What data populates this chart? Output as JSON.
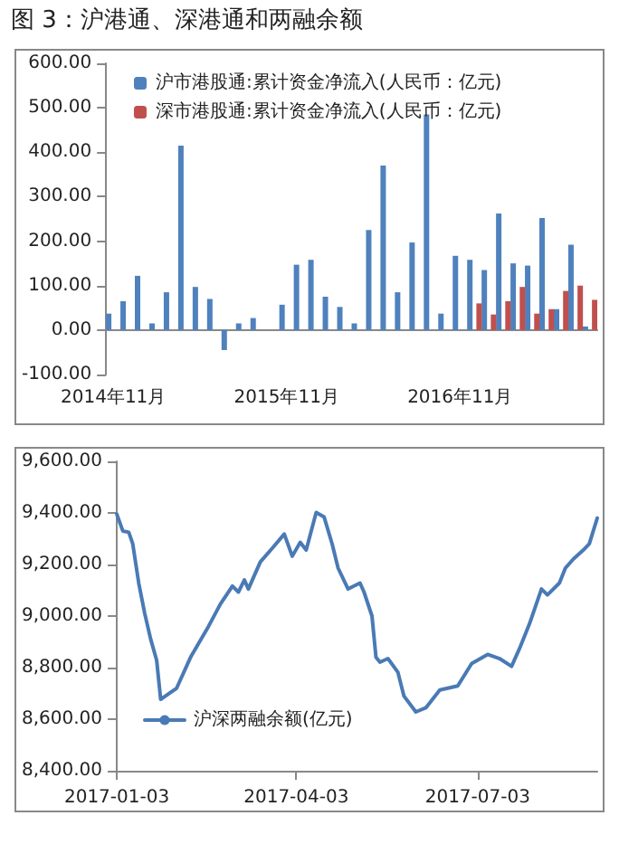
{
  "chart_data": [
    {
      "type": "bar",
      "title": "图 3：沪港通、深港通和两融余额",
      "categories": [
        "2014年11月",
        null,
        null,
        null,
        null,
        null,
        null,
        null,
        null,
        null,
        null,
        null,
        "2015年11月",
        null,
        null,
        null,
        null,
        null,
        null,
        null,
        null,
        null,
        null,
        null,
        "2016年11月",
        null,
        null,
        null,
        null,
        null,
        null,
        null,
        null,
        null
      ],
      "series": [
        {
          "name": "沪市港股通:累计资金净流入(人民币：亿元)",
          "color": "#4f81bd",
          "values": [
            37,
            65,
            122,
            15,
            85,
            415,
            97,
            70,
            -45,
            15,
            27,
            0,
            57,
            147,
            158,
            75,
            52,
            15,
            225,
            370,
            85,
            197,
            485,
            37,
            167,
            158,
            135,
            262,
            150,
            145,
            252,
            47,
            192,
            8
          ]
        },
        {
          "name": "深市港股通:累计资金净流入(人民币：亿元)",
          "color": "#c0504d",
          "values": [
            null,
            null,
            null,
            null,
            null,
            null,
            null,
            null,
            null,
            null,
            null,
            null,
            null,
            null,
            null,
            null,
            null,
            null,
            null,
            null,
            null,
            null,
            null,
            null,
            null,
            60,
            35,
            65,
            97,
            37,
            47,
            88,
            100,
            68
          ]
        }
      ],
      "ylim": [
        -100,
        600
      ],
      "yticks": [
        {
          "value": -100,
          "label": "-100.00"
        },
        {
          "value": 0,
          "label": "0.00"
        },
        {
          "value": 100,
          "label": "100.00"
        },
        {
          "value": 200,
          "label": "200.00"
        },
        {
          "value": 300,
          "label": "300.00"
        },
        {
          "value": 400,
          "label": "400.00"
        },
        {
          "value": 500,
          "label": "500.00"
        },
        {
          "value": 600,
          "label": "600.00"
        }
      ],
      "legend": "top left"
    },
    {
      "type": "line",
      "x": [
        "2017-01-03",
        "2017-01-06",
        "2017-01-09",
        "2017-01-11",
        "2017-01-14",
        "2017-01-17",
        "2017-01-20",
        "2017-01-23",
        "2017-01-25",
        "2017-02-02",
        "2017-02-09",
        "2017-02-18",
        "2017-02-24",
        "2017-03-02",
        "2017-03-05",
        "2017-03-08",
        "2017-03-10",
        "2017-03-16",
        "2017-03-22",
        "2017-03-28",
        "2017-04-01",
        "2017-04-05",
        "2017-04-08",
        "2017-04-13",
        "2017-04-17",
        "2017-04-21",
        "2017-04-24",
        "2017-04-29",
        "2017-05-05",
        "2017-05-07",
        "2017-05-11",
        "2017-05-13",
        "2017-05-15",
        "2017-05-19",
        "2017-05-24",
        "2017-05-27",
        "2017-06-02",
        "2017-06-07",
        "2017-06-14",
        "2017-06-23",
        "2017-06-30",
        "2017-07-08",
        "2017-07-14",
        "2017-07-20",
        "2017-07-24",
        "2017-07-29",
        "2017-08-04",
        "2017-08-07",
        "2017-08-13",
        "2017-08-16",
        "2017-08-20",
        "2017-08-25",
        "2017-08-28",
        "2017-09-01"
      ],
      "series": [
        {
          "name": "沪深两融余额(亿元)",
          "color": "#4a7ab5",
          "values": [
            9395,
            9330,
            9325,
            9280,
            9128,
            9010,
            8910,
            8828,
            8677,
            8720,
            8840,
            8960,
            9047,
            9116,
            9093,
            9140,
            9105,
            9210,
            9263,
            9318,
            9232,
            9286,
            9256,
            9402,
            9384,
            9280,
            9186,
            9105,
            9128,
            9093,
            9000,
            8840,
            8821,
            8835,
            8782,
            8690,
            8628,
            8644,
            8713,
            8729,
            8816,
            8851,
            8835,
            8805,
            8874,
            8970,
            9105,
            9082,
            9128,
            9186,
            9221,
            9256,
            9280,
            9380
          ]
        }
      ],
      "xlim": [
        "2017-01-03",
        "2017-09-01"
      ],
      "xticks": [
        "2017-01-03",
        "2017-04-03",
        "2017-07-03"
      ],
      "ylim": [
        8400,
        9600
      ],
      "yticks": [
        {
          "value": 8400,
          "label": "8,400.00"
        },
        {
          "value": 8600,
          "label": "8,600.00"
        },
        {
          "value": 8800,
          "label": "8,800.00"
        },
        {
          "value": 9000,
          "label": "9,000.00"
        },
        {
          "value": 9200,
          "label": "9,200.00"
        },
        {
          "value": 9400,
          "label": "9,400.00"
        },
        {
          "value": 9600,
          "label": "9,600.00"
        }
      ],
      "marker": "none",
      "line_style": "solid",
      "legend": "bottom left"
    }
  ]
}
